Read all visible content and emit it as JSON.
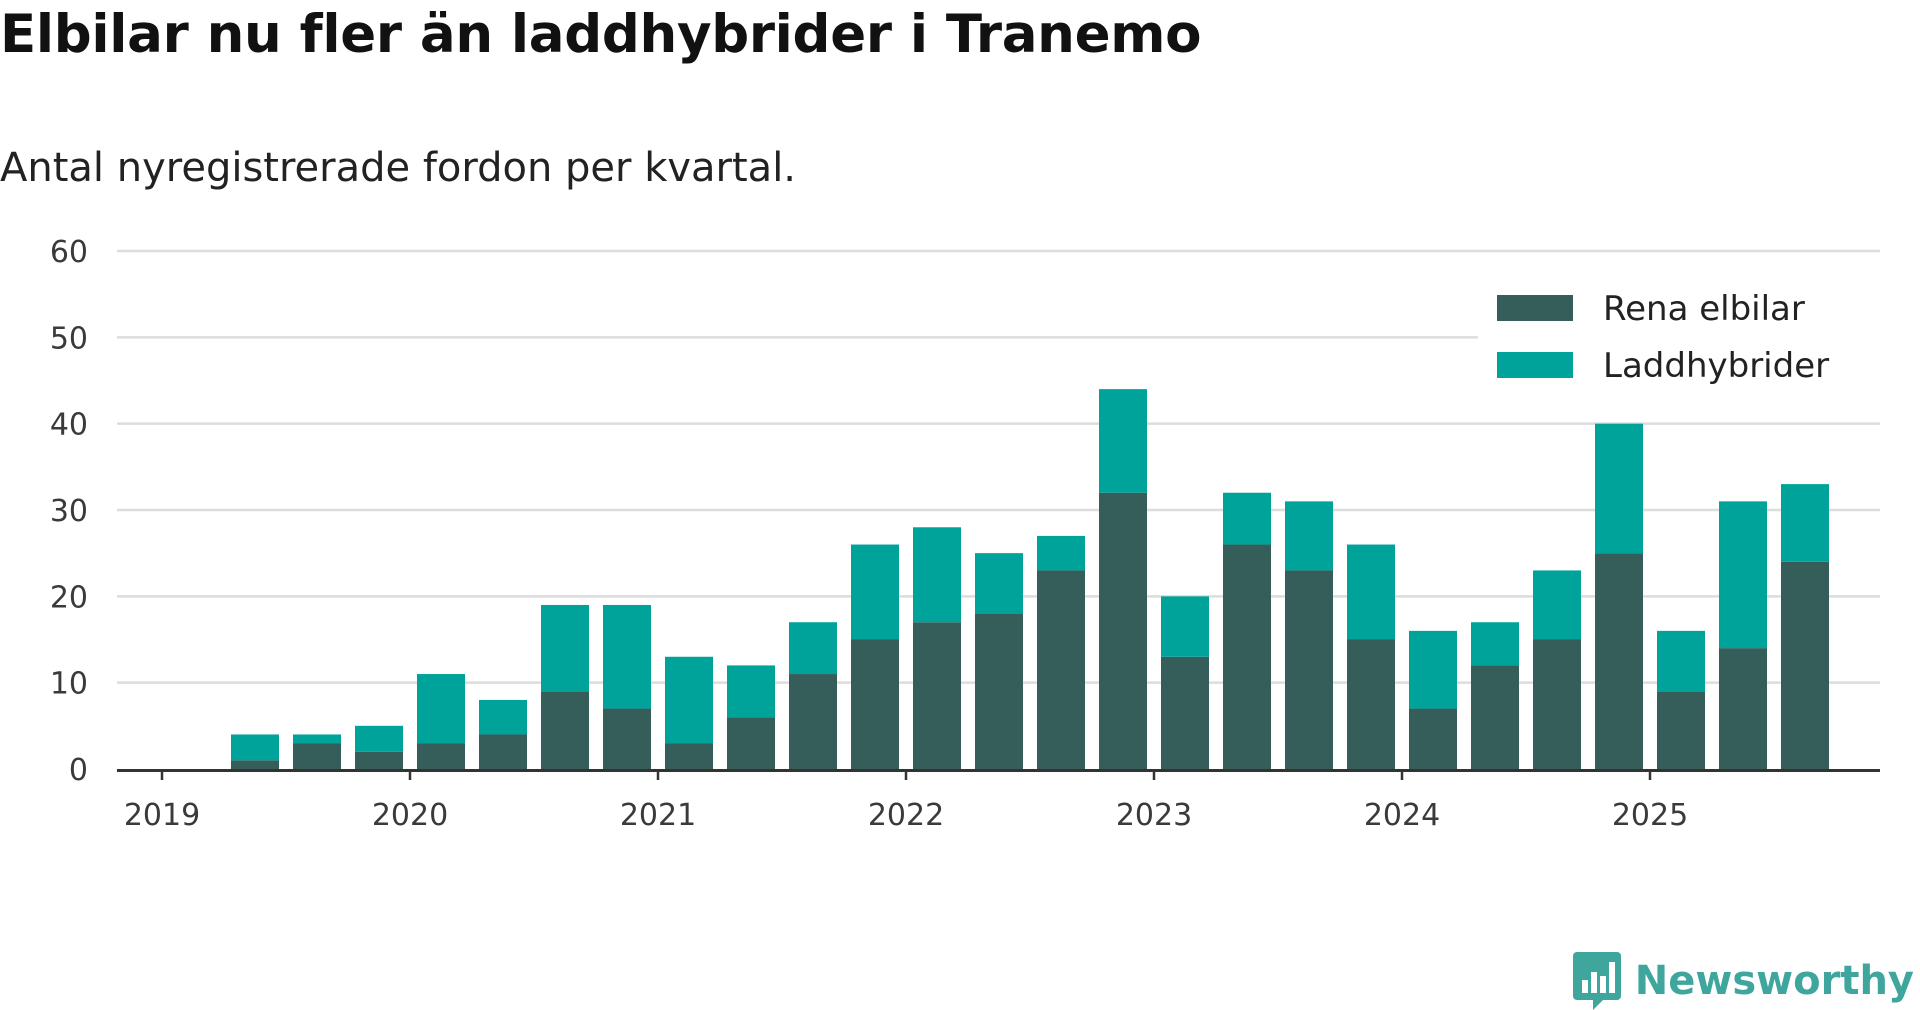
{
  "title": "Elbilar nu fler än laddhybrider i Tranemo",
  "subtitle": "Antal nyregistrerade fordon per kvartal.",
  "brand": {
    "name": "Newsworthy",
    "icon": "newsworthy-logo-icon"
  },
  "colors": {
    "rena_elbilar": "#355e5b",
    "laddhybrider": "#00a39a",
    "grid": "#dddddd",
    "axis": "#333333",
    "brand": "#3fa69d"
  },
  "chart_data": {
    "type": "bar",
    "stacked": true,
    "title": "Elbilar nu fler än laddhybrider i Tranemo",
    "subtitle": "Antal nyregistrerade fordon per kvartal.",
    "xlabel": "",
    "ylabel": "",
    "ylim": [
      0,
      60
    ],
    "yticks": [
      "0",
      "10",
      "20",
      "30",
      "40",
      "50",
      "60"
    ],
    "year_ticks": [
      "2019",
      "2020",
      "2021",
      "2022",
      "2023",
      "2024",
      "2025"
    ],
    "grid": true,
    "legend_position": "top-right",
    "categories": [
      "2019 Q2",
      "2019 Q3",
      "2019 Q4",
      "2020 Q1",
      "2020 Q2",
      "2020 Q3",
      "2020 Q4",
      "2021 Q1",
      "2021 Q2",
      "2021 Q3",
      "2021 Q4",
      "2022 Q1",
      "2022 Q2",
      "2022 Q3",
      "2022 Q4",
      "2023 Q1",
      "2023 Q2",
      "2023 Q3",
      "2023 Q4",
      "2024 Q1",
      "2024 Q2",
      "2024 Q3",
      "2024 Q4",
      "2025 Q1",
      "2025 Q2",
      "2025 Q3"
    ],
    "series": [
      {
        "name": "Rena elbilar",
        "values": [
          1,
          3,
          2,
          3,
          4,
          9,
          7,
          3,
          6,
          11,
          15,
          17,
          18,
          23,
          32,
          13,
          26,
          23,
          15,
          7,
          12,
          15,
          25,
          9,
          14,
          24
        ]
      },
      {
        "name": "Laddhybrider",
        "values": [
          3,
          1,
          3,
          8,
          4,
          10,
          12,
          10,
          6,
          6,
          11,
          11,
          7,
          4,
          12,
          7,
          6,
          8,
          11,
          9,
          5,
          8,
          15,
          7,
          17,
          9
        ]
      }
    ]
  }
}
